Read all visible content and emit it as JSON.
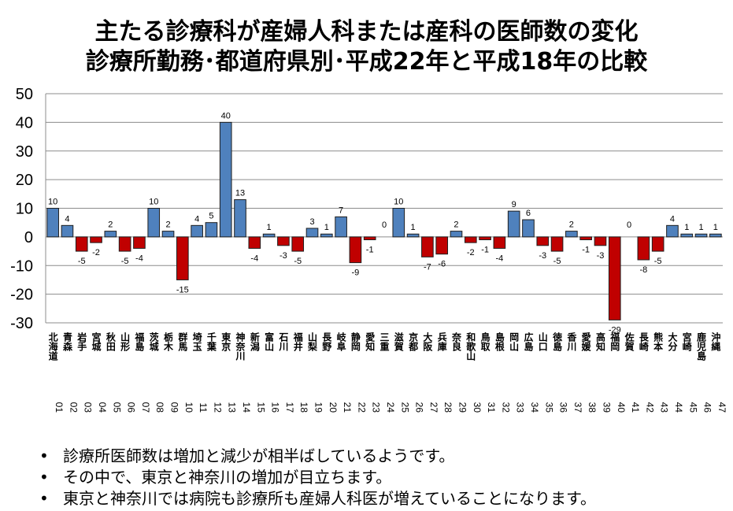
{
  "title": {
    "line1": "主たる診療科が産婦人科または産科の医師数の変化",
    "line2": "診療所勤務･都道府県別･平成22年と平成18年の比較"
  },
  "bullets": [
    "診療所医師数は増加と減少が相半ばしているようです。",
    "その中で、東京と神奈川の増加が目立ちます。",
    "東京と神奈川では病院も診療所も産婦人科医が増えていることになります。"
  ],
  "chart_data": {
    "type": "bar",
    "title": "主たる診療科が産婦人科または産科の医師数の変化 診療所勤務･都道府県別･平成22年と平成18年の比較",
    "xlabel": "",
    "ylabel": "",
    "ylim": [
      -30,
      50
    ],
    "yticks": [
      -30,
      -20,
      -10,
      0,
      10,
      20,
      30,
      40,
      50
    ],
    "grid": true,
    "positive_color": "#4f81bd",
    "negative_color": "#c00000",
    "categories": [
      "01 北海道",
      "02 青森",
      "03 岩手",
      "04 宮城",
      "05 秋田",
      "06 山形",
      "07 福島",
      "08 茨城",
      "09 栃木",
      "10 群馬",
      "11 埼玉",
      "12 千葉",
      "13 東京",
      "14 神奈川",
      "15 新潟",
      "16 富山",
      "17 石川",
      "18 福井",
      "19 山梨",
      "20 長野",
      "21 岐阜",
      "22 静岡",
      "23 愛知",
      "24 三重",
      "25 滋賀",
      "26 京都",
      "27 大阪",
      "28 兵庫",
      "29 奈良",
      "30 和歌山",
      "31 鳥取",
      "32 島根",
      "33 岡山",
      "34 広島",
      "35 山口",
      "36 徳島",
      "37 香川",
      "38 愛媛",
      "39 高知",
      "40 福岡",
      "41 佐賀",
      "42 長崎",
      "43 熊本",
      "44 大分",
      "45 宮崎",
      "46 鹿児島",
      "47 沖縄"
    ],
    "values": [
      10,
      4,
      -5,
      -2,
      2,
      -5,
      -4,
      10,
      2,
      -15,
      4,
      5,
      40,
      13,
      -4,
      1,
      -3,
      -5,
      3,
      1,
      7,
      -9,
      -1,
      0,
      10,
      1,
      -7,
      -6,
      2,
      -2,
      -1,
      -4,
      9,
      6,
      -3,
      -5,
      2,
      -1,
      -3,
      -29,
      0,
      -8,
      -5,
      4,
      1,
      1,
      1
    ]
  }
}
